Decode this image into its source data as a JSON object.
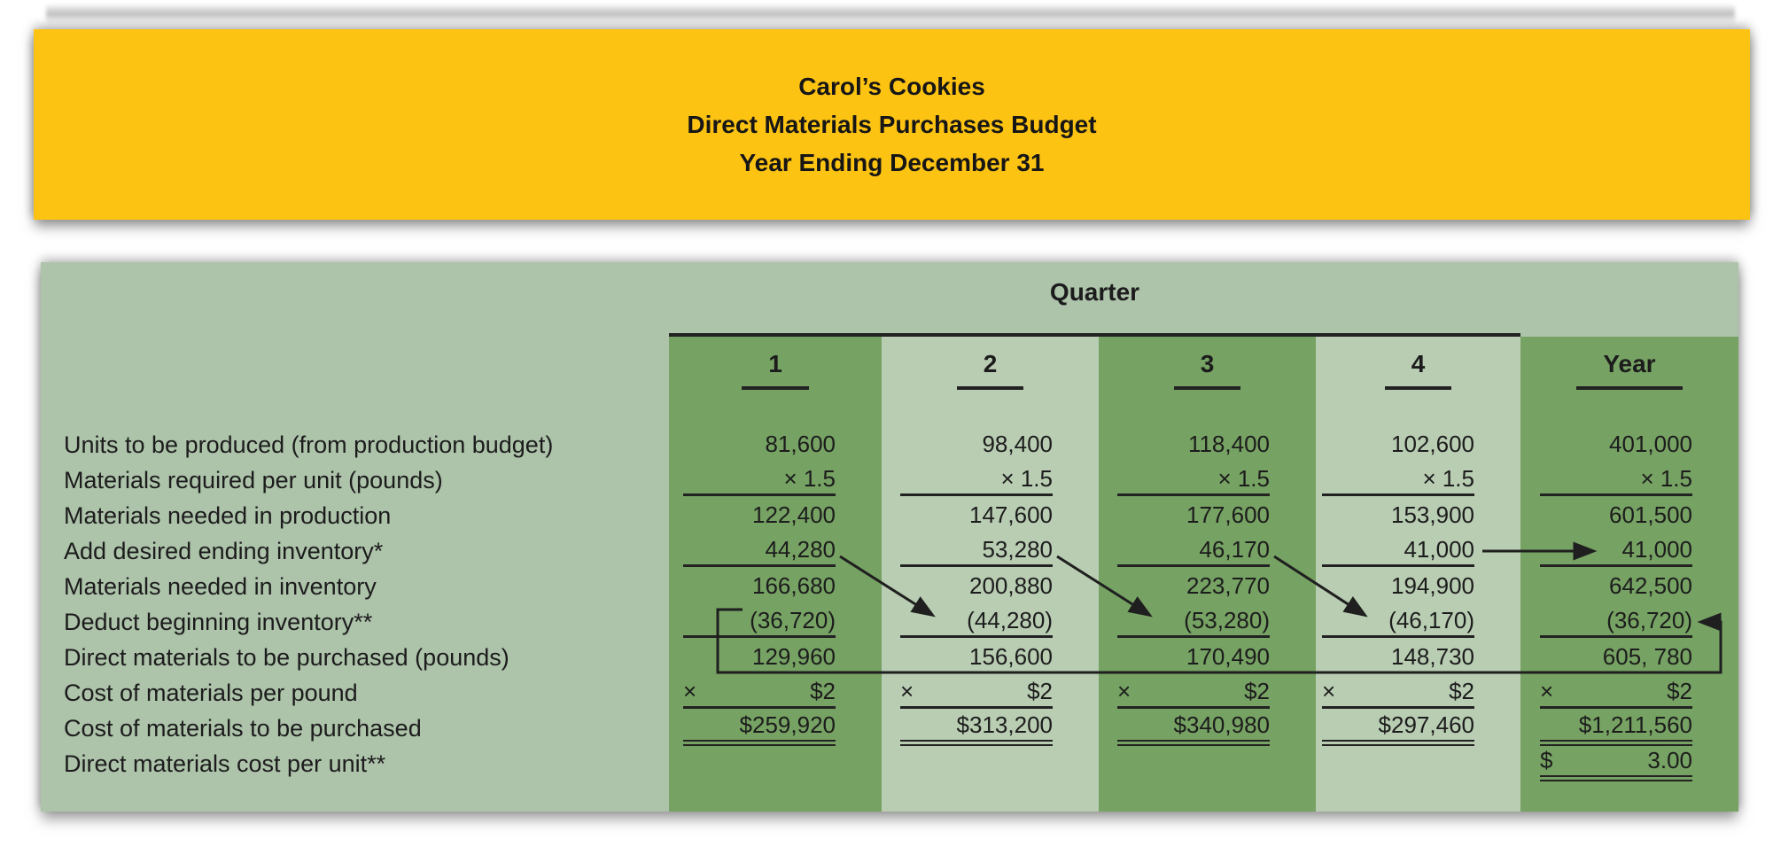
{
  "header": {
    "line1": "Carol’s Cookies",
    "line2": "Direct Materials Purchases Budget",
    "line3": "Year Ending December 31"
  },
  "table": {
    "group_header": "Quarter",
    "columns": [
      "1",
      "2",
      "3",
      "4",
      "Year"
    ],
    "rows": [
      {
        "label": "Units to be produced (from production budget)",
        "values": [
          "81,600",
          "98,400",
          "118,400",
          "102,600",
          "401,000"
        ],
        "underline": "none"
      },
      {
        "label": "Materials required per unit (pounds)",
        "values": [
          "× 1.5",
          "× 1.5",
          "× 1.5",
          "× 1.5",
          "× 1.5"
        ],
        "underline": "single"
      },
      {
        "label": "Materials needed in production",
        "values": [
          "122,400",
          "147,600",
          "177,600",
          "153,900",
          "601,500"
        ],
        "underline": "none"
      },
      {
        "label": "Add desired ending inventory*",
        "values": [
          "44,280",
          "53,280",
          "46,170",
          "41,000",
          "41,000"
        ],
        "underline": "single"
      },
      {
        "label": "Materials needed in inventory",
        "values": [
          "166,680",
          "200,880",
          "223,770",
          "194,900",
          "642,500"
        ],
        "underline": "none"
      },
      {
        "label": "Deduct beginning inventory**",
        "values": [
          "(36,720)",
          "(44,280)",
          "(53,280)",
          "(46,170)",
          "(36,720)"
        ],
        "underline": "single"
      },
      {
        "label": "Direct materials to be purchased (pounds)",
        "values": [
          "129,960",
          "156,600",
          "170,490",
          "148,730",
          "605, 780"
        ],
        "underline": "none"
      },
      {
        "label": "Cost of materials per pound",
        "values": [
          [
            "×",
            "$2"
          ],
          [
            "×",
            "$2"
          ],
          [
            "×",
            "$2"
          ],
          [
            "×",
            "$2"
          ],
          [
            "×",
            "$2"
          ]
        ],
        "underline": "single"
      },
      {
        "label": "Cost of materials to be purchased",
        "values": [
          "$259,920",
          "$313,200",
          "$340,980",
          "$297,460",
          "$1,211,560"
        ],
        "underline": "double"
      },
      {
        "label": "Direct materials cost per unit**",
        "values": [
          "",
          "",
          "",
          "",
          [
            "$",
            "3.00"
          ]
        ],
        "underline": "double"
      }
    ],
    "annotations": [
      "arrow: Q1 ending inventory 44,280 flows to Q2 beginning inventory",
      "arrow: Q2 ending inventory 53,280 flows to Q3 beginning inventory",
      "arrow: Q3 ending inventory 46,170 flows to Q4 beginning inventory",
      "arrow: Q4 ending inventory 41,000 flows to Year ending inventory",
      "arrow: Q1 beginning inventory (36,720) flows around table to Year beginning inventory"
    ]
  },
  "colors": {
    "title_box_bg": "#FDC313",
    "table_bg": "#ADC3AA",
    "band_dark": "#76A263",
    "band_light": "#B9CDB3",
    "text": "#1C1C1C",
    "rule": "#222222"
  }
}
